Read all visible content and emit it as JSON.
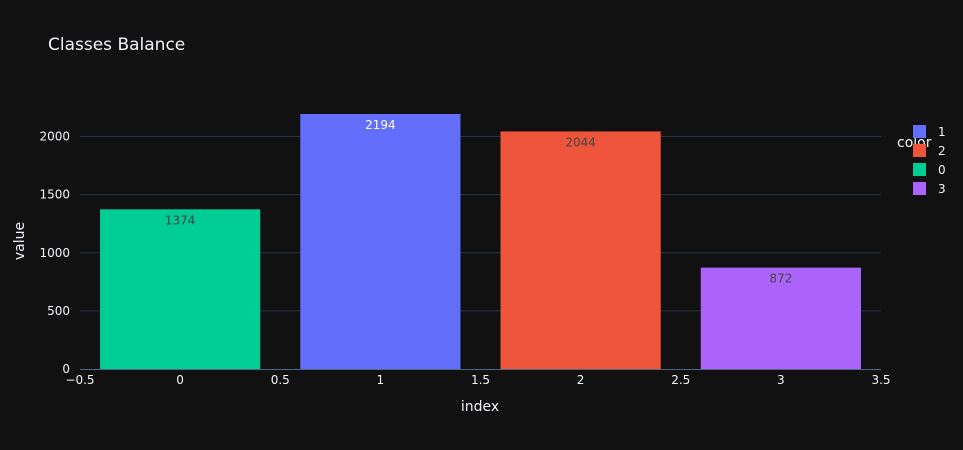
{
  "chart_data": {
    "type": "bar",
    "title": "Classes Balance",
    "xlabel": "index",
    "ylabel": "value",
    "xlim": [
      -0.5,
      3.5
    ],
    "ylim": [
      0,
      2194
    ],
    "x_ticks": [
      {
        "value": -0.5,
        "label": "−0.5"
      },
      {
        "value": 0,
        "label": "0"
      },
      {
        "value": 0.5,
        "label": "0.5"
      },
      {
        "value": 1,
        "label": "1"
      },
      {
        "value": 1.5,
        "label": "1.5"
      },
      {
        "value": 2,
        "label": "2"
      },
      {
        "value": 2.5,
        "label": "2.5"
      },
      {
        "value": 3,
        "label": "3"
      },
      {
        "value": 3.5,
        "label": "3.5"
      }
    ],
    "y_ticks": [
      0,
      500,
      1000,
      1500,
      2000
    ],
    "grid": true,
    "legend": {
      "title": "color",
      "placement": "right",
      "entries": [
        {
          "label": "1",
          "color": "#636efa"
        },
        {
          "label": "2",
          "color": "#ef553b"
        },
        {
          "label": "0",
          "color": "#00cc96"
        },
        {
          "label": "3",
          "color": "#ab63fa"
        }
      ]
    },
    "bars": [
      {
        "x": 0,
        "value": 1374,
        "series": "0",
        "color": "#00cc96",
        "label": "1374",
        "label_color": "#444444"
      },
      {
        "x": 1,
        "value": 2194,
        "series": "1",
        "color": "#636efa",
        "label": "2194",
        "label_color": "#ffffff"
      },
      {
        "x": 2,
        "value": 2044,
        "series": "2",
        "color": "#ef553b",
        "label": "2044",
        "label_color": "#444444"
      },
      {
        "x": 3,
        "value": 872,
        "series": "3",
        "color": "#ab63fa",
        "label": "872",
        "label_color": "#444444"
      }
    ]
  },
  "colors": {
    "background": "#111111",
    "plot_background": "#111111",
    "grid": "#283442",
    "text": "#f2f5fa",
    "axis_line": "#506784"
  }
}
